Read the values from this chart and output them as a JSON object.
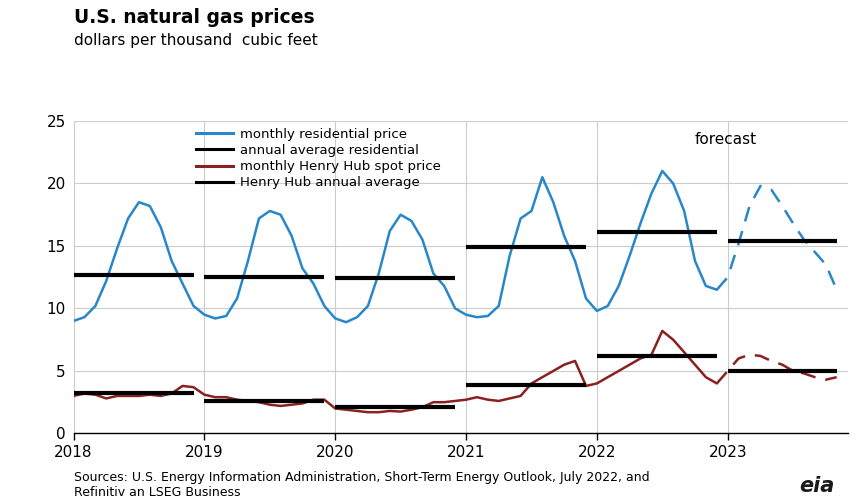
{
  "title": "U.S. natural gas prices",
  "subtitle": "dollars per thousand  cubic feet",
  "source_text": "Sources: U.S. Energy Information Administration, Short-Term Energy Outlook, July 2022, and\nRefinitiv an LSEG Business",
  "forecast_label": "forecast",
  "ylim": [
    0,
    25
  ],
  "yticks": [
    0,
    5,
    10,
    15,
    20,
    25
  ],
  "background_color": "#ffffff",
  "grid_color": "#cccccc",
  "residential_monthly": {
    "color": "#2887c8",
    "x": [
      2018.0,
      2018.083,
      2018.167,
      2018.25,
      2018.333,
      2018.417,
      2018.5,
      2018.583,
      2018.667,
      2018.75,
      2018.833,
      2018.917,
      2019.0,
      2019.083,
      2019.167,
      2019.25,
      2019.333,
      2019.417,
      2019.5,
      2019.583,
      2019.667,
      2019.75,
      2019.833,
      2019.917,
      2020.0,
      2020.083,
      2020.167,
      2020.25,
      2020.333,
      2020.417,
      2020.5,
      2020.583,
      2020.667,
      2020.75,
      2020.833,
      2020.917,
      2021.0,
      2021.083,
      2021.167,
      2021.25,
      2021.333,
      2021.417,
      2021.5,
      2021.583,
      2021.667,
      2021.75,
      2021.833,
      2021.917,
      2022.0,
      2022.083,
      2022.167,
      2022.25,
      2022.333,
      2022.417,
      2022.5,
      2022.583,
      2022.667,
      2022.75,
      2022.833,
      2022.917
    ],
    "y": [
      9.0,
      9.3,
      10.2,
      12.2,
      14.8,
      17.2,
      18.5,
      18.2,
      16.5,
      13.8,
      12.0,
      10.2,
      9.5,
      9.2,
      9.4,
      10.8,
      13.8,
      17.2,
      17.8,
      17.5,
      15.8,
      13.2,
      12.0,
      10.2,
      9.2,
      8.9,
      9.3,
      10.2,
      12.8,
      16.2,
      17.5,
      17.0,
      15.5,
      12.8,
      11.8,
      10.0,
      9.5,
      9.3,
      9.4,
      10.2,
      14.2,
      17.2,
      17.8,
      20.5,
      18.5,
      15.8,
      13.8,
      10.8,
      9.8,
      10.2,
      11.8,
      14.2,
      16.8,
      19.2,
      21.0,
      20.0,
      17.8,
      13.8,
      11.8,
      11.5
    ]
  },
  "residential_monthly_forecast": {
    "color": "#2887c8",
    "x": [
      2022.917,
      2023.0,
      2023.083,
      2023.167,
      2023.25,
      2023.333,
      2023.417,
      2023.5,
      2023.583,
      2023.667,
      2023.75,
      2023.833
    ],
    "y": [
      11.5,
      12.5,
      15.2,
      18.2,
      19.8,
      19.5,
      18.2,
      16.8,
      15.5,
      14.5,
      13.5,
      11.5
    ]
  },
  "residential_annual": {
    "color": "#000000",
    "segments": [
      {
        "x": [
          2018.0,
          2018.917
        ],
        "y": [
          12.7,
          12.7
        ]
      },
      {
        "x": [
          2019.0,
          2019.917
        ],
        "y": [
          12.5,
          12.5
        ]
      },
      {
        "x": [
          2020.0,
          2020.917
        ],
        "y": [
          12.4,
          12.4
        ]
      },
      {
        "x": [
          2021.0,
          2021.917
        ],
        "y": [
          14.9,
          14.9
        ]
      },
      {
        "x": [
          2022.0,
          2022.917
        ],
        "y": [
          16.1,
          16.1
        ]
      },
      {
        "x": [
          2023.0,
          2023.833
        ],
        "y": [
          15.4,
          15.4
        ]
      }
    ]
  },
  "henryhub_monthly": {
    "color": "#8b2020",
    "x": [
      2018.0,
      2018.083,
      2018.167,
      2018.25,
      2018.333,
      2018.417,
      2018.5,
      2018.583,
      2018.667,
      2018.75,
      2018.833,
      2018.917,
      2019.0,
      2019.083,
      2019.167,
      2019.25,
      2019.333,
      2019.417,
      2019.5,
      2019.583,
      2019.667,
      2019.75,
      2019.833,
      2019.917,
      2020.0,
      2020.083,
      2020.167,
      2020.25,
      2020.333,
      2020.417,
      2020.5,
      2020.583,
      2020.667,
      2020.75,
      2020.833,
      2020.917,
      2021.0,
      2021.083,
      2021.167,
      2021.25,
      2021.333,
      2021.417,
      2021.5,
      2021.583,
      2021.667,
      2021.75,
      2021.833,
      2021.917,
      2022.0,
      2022.083,
      2022.167,
      2022.25,
      2022.333,
      2022.417,
      2022.5,
      2022.583,
      2022.667,
      2022.75,
      2022.833,
      2022.917
    ],
    "y": [
      3.0,
      3.2,
      3.1,
      2.8,
      3.0,
      3.0,
      3.0,
      3.1,
      3.0,
      3.2,
      3.8,
      3.7,
      3.1,
      2.9,
      2.9,
      2.7,
      2.6,
      2.5,
      2.3,
      2.2,
      2.3,
      2.4,
      2.7,
      2.7,
      2.0,
      1.9,
      1.8,
      1.7,
      1.7,
      1.8,
      1.75,
      1.9,
      2.1,
      2.5,
      2.5,
      2.6,
      2.7,
      2.9,
      2.7,
      2.6,
      2.8,
      3.0,
      4.0,
      4.5,
      5.0,
      5.5,
      5.8,
      3.8,
      4.0,
      4.5,
      5.0,
      5.5,
      6.0,
      6.3,
      8.2,
      7.5,
      6.5,
      5.5,
      4.5,
      4.0
    ]
  },
  "henryhub_monthly_forecast": {
    "color": "#8b2020",
    "x": [
      2022.917,
      2023.0,
      2023.083,
      2023.167,
      2023.25,
      2023.333,
      2023.417,
      2023.5,
      2023.583,
      2023.667,
      2023.75,
      2023.833
    ],
    "y": [
      4.0,
      5.0,
      6.0,
      6.3,
      6.2,
      5.8,
      5.5,
      5.0,
      4.8,
      4.5,
      4.3,
      4.5
    ]
  },
  "henryhub_annual": {
    "color": "#000000",
    "segments": [
      {
        "x": [
          2018.0,
          2018.917
        ],
        "y": [
          3.2,
          3.2
        ]
      },
      {
        "x": [
          2019.0,
          2019.917
        ],
        "y": [
          2.6,
          2.6
        ]
      },
      {
        "x": [
          2020.0,
          2020.917
        ],
        "y": [
          2.1,
          2.1
        ]
      },
      {
        "x": [
          2021.0,
          2021.917
        ],
        "y": [
          3.9,
          3.9
        ]
      },
      {
        "x": [
          2022.0,
          2022.917
        ],
        "y": [
          6.2,
          6.2
        ]
      },
      {
        "x": [
          2023.0,
          2023.833
        ],
        "y": [
          5.0,
          5.0
        ]
      }
    ]
  },
  "xlim": [
    2018.0,
    2023.917
  ],
  "xtick_positions": [
    2018,
    2019,
    2020,
    2021,
    2022,
    2023
  ],
  "xtick_labels": [
    "2018",
    "2019",
    "2020",
    "2021",
    "2022",
    "2023"
  ],
  "legend": [
    {
      "label": "monthly residential price",
      "color": "#2887c8",
      "linestyle": "solid"
    },
    {
      "label": "annual average residential",
      "color": "#000000",
      "linestyle": "solid"
    },
    {
      "label": "monthly Henry Hub spot price",
      "color": "#8b2020",
      "linestyle": "solid"
    },
    {
      "label": "Henry Hub annual average",
      "color": "#000000",
      "linestyle": "solid"
    }
  ],
  "forecast_x": 2022.75,
  "forecast_y": 23.5,
  "linewidth": 1.8,
  "annual_linewidth": 3.0,
  "forecast_linewidth": 1.8
}
